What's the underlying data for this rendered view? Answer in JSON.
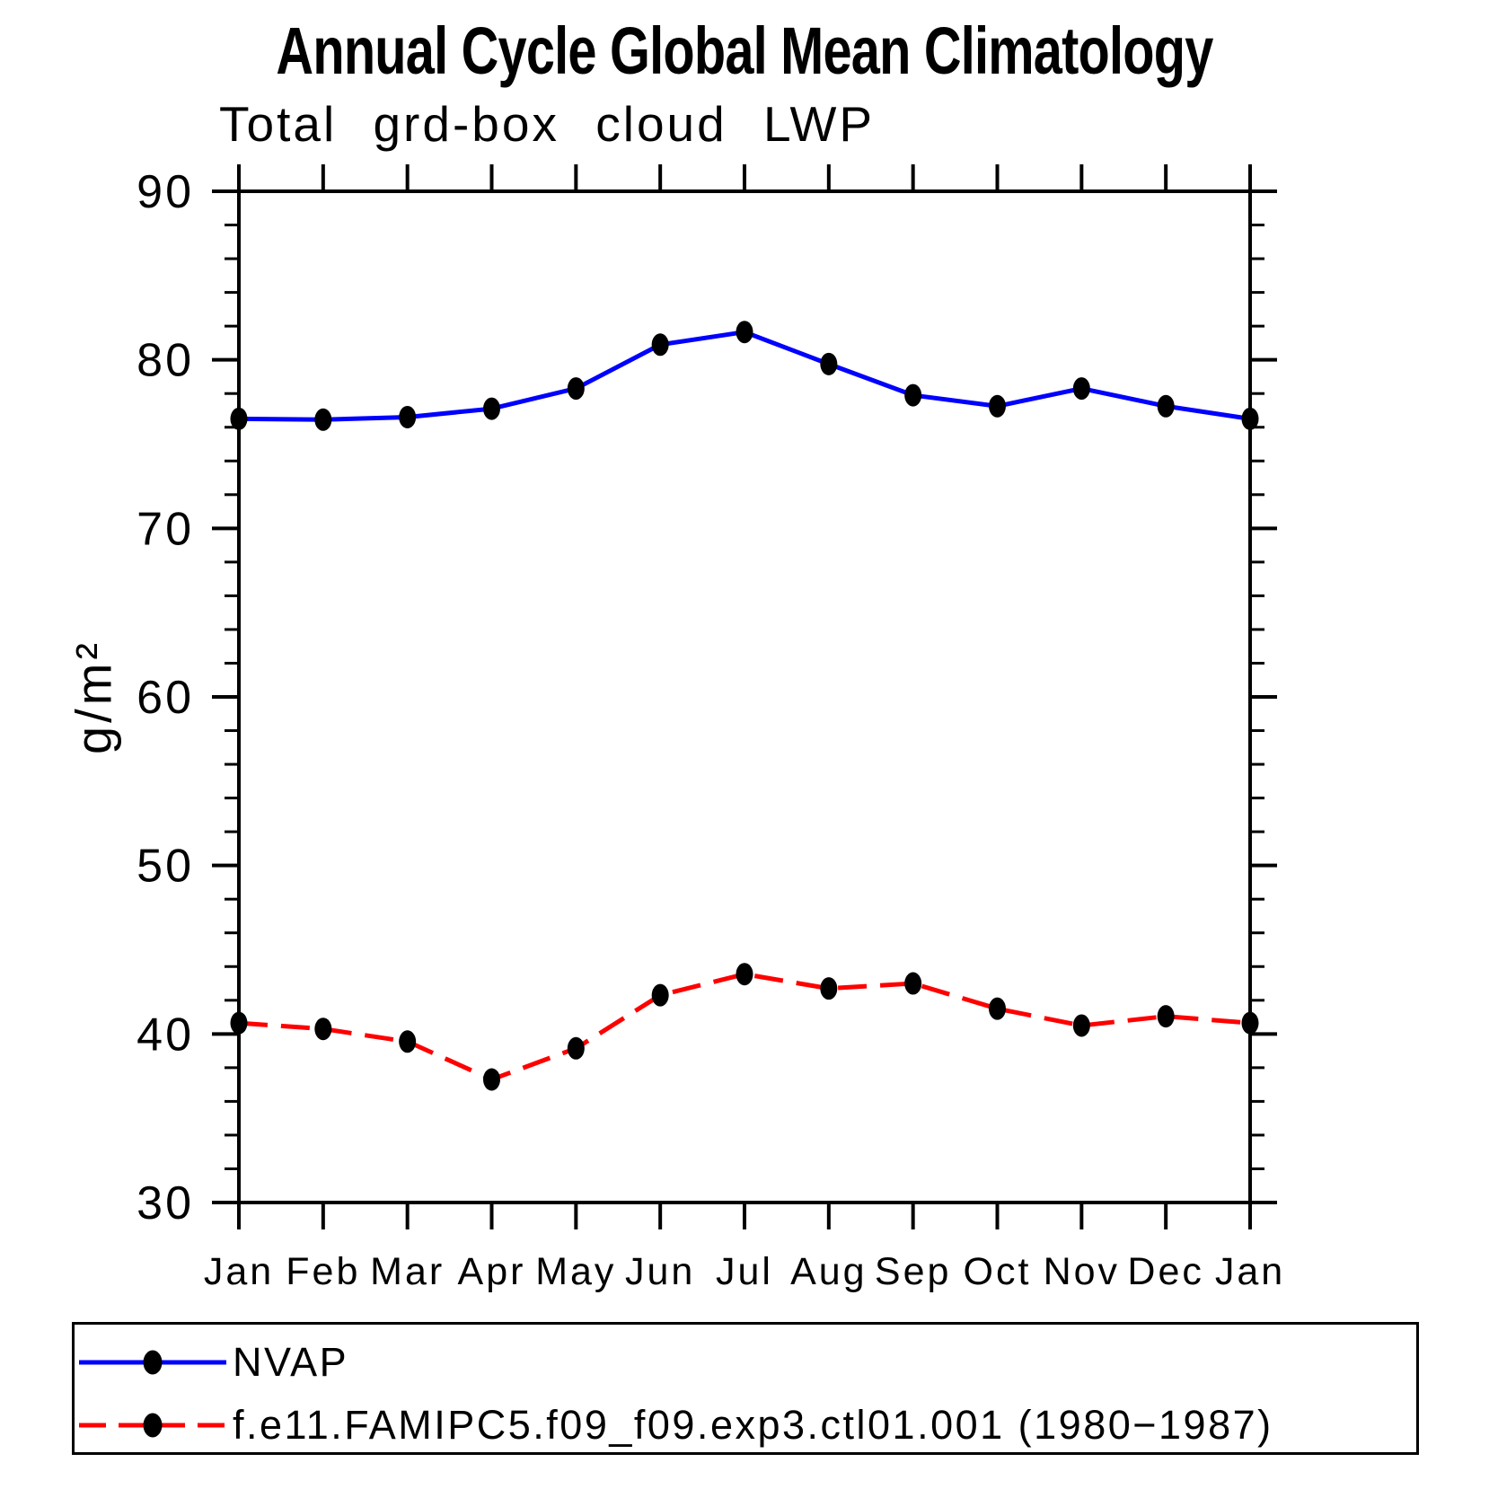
{
  "chart_data": {
    "type": "line",
    "title": "Annual Cycle Global Mean Climatology",
    "subtitle": "Total grd-box cloud LWP",
    "ylabel": "g/m²",
    "xlabel": "",
    "categories": [
      "Jan",
      "Feb",
      "Mar",
      "Apr",
      "May",
      "Jun",
      "Jul",
      "Aug",
      "Sep",
      "Oct",
      "Nov",
      "Dec",
      "Jan"
    ],
    "ylim": [
      30,
      90
    ],
    "yticks": [
      30,
      40,
      50,
      60,
      70,
      80,
      90
    ],
    "ytick_labels": [
      "30",
      "40",
      "50",
      "60",
      "70",
      "80",
      "90"
    ],
    "minor_tick_interval": 2,
    "grid": false,
    "legend_position": "bottom-left-box",
    "axis_color": "#000000",
    "marker": "filled-circle",
    "marker_color": "#000000",
    "series": [
      {
        "name": "NVAP",
        "color": "#0000ff",
        "style": "solid",
        "values": [
          76.5,
          76.45,
          76.6,
          77.1,
          78.3,
          80.9,
          81.65,
          79.75,
          77.9,
          77.25,
          78.3,
          77.25,
          76.5
        ]
      },
      {
        "name": "f.e11.FAMIPC5.f09_f09.exp3.ctl01.001 (1980−1987)",
        "color": "#ff0000",
        "style": "dashed",
        "values": [
          40.65,
          40.3,
          39.55,
          37.3,
          39.15,
          42.3,
          43.55,
          42.7,
          43.0,
          41.5,
          40.5,
          41.05,
          40.65
        ]
      }
    ]
  }
}
